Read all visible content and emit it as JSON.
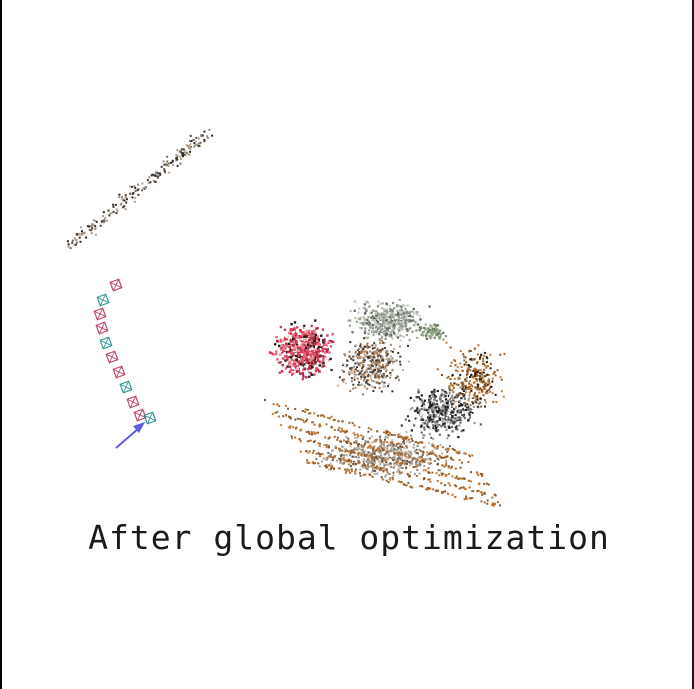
{
  "caption": "After global optimization",
  "colors": {
    "background": "#ffffff",
    "caption_text": "#1b1b1b",
    "arrow": "#5a5ae6",
    "camera_frame_pink": "#c24a6a",
    "camera_frame_teal": "#3a9a9a",
    "points_red": "#d83a55",
    "points_orange": "#b06a2a",
    "points_brown": "#6a4a2a",
    "points_gray": "#8a8a8a",
    "points_black": "#1a1a1a",
    "points_sage": "#9aaa90"
  },
  "icons": {
    "arrow": "arrow-icon",
    "camera": "camera-frustum-icon"
  }
}
